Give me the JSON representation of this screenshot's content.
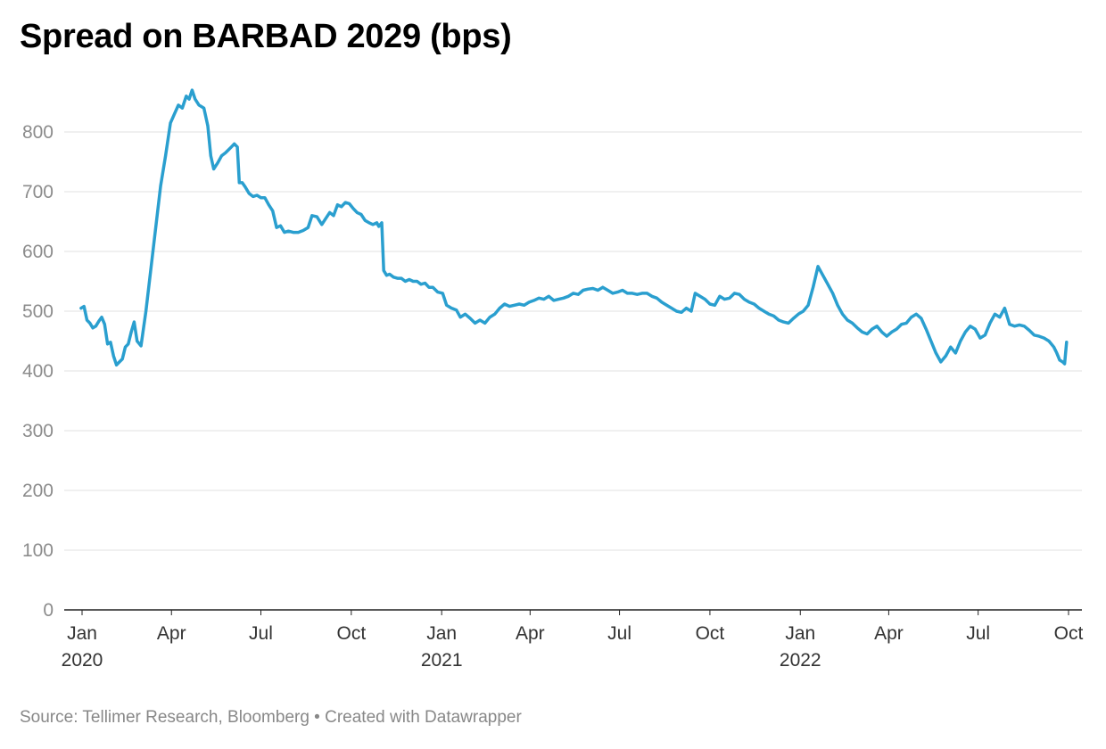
{
  "footer": {
    "source_text": "Source: Tellimer Research, Bloomberg • Created with Datawrapper"
  },
  "colors": {
    "line": "#2a9fcf",
    "grid": "#e0e0e0",
    "axis": "#222222"
  },
  "chart_data": {
    "type": "line",
    "title": "Spread on BARBAD 2029 (bps)",
    "xlabel": "",
    "ylabel": "",
    "xlim": [
      "2020-01-01",
      "2022-10-01"
    ],
    "ylim": [
      0,
      870
    ],
    "grid": true,
    "y_ticks": [
      0,
      100,
      200,
      300,
      400,
      500,
      600,
      700,
      800
    ],
    "x_ticks": [
      {
        "date": "2020-01-01",
        "label": "Jan",
        "year": "2020"
      },
      {
        "date": "2020-04-01",
        "label": "Apr",
        "year": ""
      },
      {
        "date": "2020-07-01",
        "label": "Jul",
        "year": ""
      },
      {
        "date": "2020-10-01",
        "label": "Oct",
        "year": ""
      },
      {
        "date": "2021-01-01",
        "label": "Jan",
        "year": "2021"
      },
      {
        "date": "2021-04-01",
        "label": "Apr",
        "year": ""
      },
      {
        "date": "2021-07-01",
        "label": "Jul",
        "year": ""
      },
      {
        "date": "2021-10-01",
        "label": "Oct",
        "year": ""
      },
      {
        "date": "2022-01-01",
        "label": "Jan",
        "year": "2022"
      },
      {
        "date": "2022-04-01",
        "label": "Apr",
        "year": ""
      },
      {
        "date": "2022-07-01",
        "label": "Jul",
        "year": ""
      },
      {
        "date": "2022-10-01",
        "label": "Oct",
        "year": ""
      }
    ],
    "series": [
      {
        "points": [
          [
            "2019-12-31",
            505
          ],
          [
            "2020-01-03",
            508
          ],
          [
            "2020-01-06",
            485
          ],
          [
            "2020-01-09",
            480
          ],
          [
            "2020-01-12",
            472
          ],
          [
            "2020-01-15",
            475
          ],
          [
            "2020-01-18",
            483
          ],
          [
            "2020-01-21",
            490
          ],
          [
            "2020-01-24",
            478
          ],
          [
            "2020-01-27",
            445
          ],
          [
            "2020-01-30",
            448
          ],
          [
            "2020-02-02",
            425
          ],
          [
            "2020-02-05",
            410
          ],
          [
            "2020-02-08",
            415
          ],
          [
            "2020-02-11",
            420
          ],
          [
            "2020-02-14",
            440
          ],
          [
            "2020-02-17",
            445
          ],
          [
            "2020-02-20",
            465
          ],
          [
            "2020-02-23",
            482
          ],
          [
            "2020-02-26",
            450
          ],
          [
            "2020-03-01",
            442
          ],
          [
            "2020-03-06",
            500
          ],
          [
            "2020-03-11",
            570
          ],
          [
            "2020-03-16",
            640
          ],
          [
            "2020-03-21",
            710
          ],
          [
            "2020-03-26",
            760
          ],
          [
            "2020-03-31",
            815
          ],
          [
            "2020-04-04",
            830
          ],
          [
            "2020-04-08",
            845
          ],
          [
            "2020-04-12",
            840
          ],
          [
            "2020-04-16",
            860
          ],
          [
            "2020-04-19",
            855
          ],
          [
            "2020-04-22",
            870
          ],
          [
            "2020-04-25",
            855
          ],
          [
            "2020-04-29",
            845
          ],
          [
            "2020-05-04",
            840
          ],
          [
            "2020-05-08",
            810
          ],
          [
            "2020-05-11",
            760
          ],
          [
            "2020-05-14",
            738
          ],
          [
            "2020-05-18",
            748
          ],
          [
            "2020-05-22",
            760
          ],
          [
            "2020-05-26",
            765
          ],
          [
            "2020-05-29",
            770
          ],
          [
            "2020-06-01",
            775
          ],
          [
            "2020-06-04",
            780
          ],
          [
            "2020-06-07",
            775
          ],
          [
            "2020-06-09",
            715
          ],
          [
            "2020-06-12",
            715
          ],
          [
            "2020-06-15",
            708
          ],
          [
            "2020-06-19",
            697
          ],
          [
            "2020-06-23",
            692
          ],
          [
            "2020-06-27",
            694
          ],
          [
            "2020-07-01",
            690
          ],
          [
            "2020-07-05",
            690
          ],
          [
            "2020-07-09",
            678
          ],
          [
            "2020-07-13",
            668
          ],
          [
            "2020-07-17",
            640
          ],
          [
            "2020-07-21",
            643
          ],
          [
            "2020-07-25",
            632
          ],
          [
            "2020-07-29",
            634
          ],
          [
            "2020-08-03",
            632
          ],
          [
            "2020-08-08",
            632
          ],
          [
            "2020-08-13",
            635
          ],
          [
            "2020-08-18",
            640
          ],
          [
            "2020-08-22",
            660
          ],
          [
            "2020-08-27",
            658
          ],
          [
            "2020-09-01",
            645
          ],
          [
            "2020-09-05",
            655
          ],
          [
            "2020-09-09",
            665
          ],
          [
            "2020-09-13",
            660
          ],
          [
            "2020-09-17",
            678
          ],
          [
            "2020-09-21",
            675
          ],
          [
            "2020-09-25",
            682
          ],
          [
            "2020-09-29",
            680
          ],
          [
            "2020-10-03",
            672
          ],
          [
            "2020-10-07",
            665
          ],
          [
            "2020-10-11",
            662
          ],
          [
            "2020-10-15",
            652
          ],
          [
            "2020-10-19",
            648
          ],
          [
            "2020-10-23",
            645
          ],
          [
            "2020-10-27",
            648
          ],
          [
            "2020-10-29",
            642
          ],
          [
            "2020-11-01",
            648
          ],
          [
            "2020-11-03",
            568
          ],
          [
            "2020-11-06",
            560
          ],
          [
            "2020-11-09",
            562
          ],
          [
            "2020-11-13",
            557
          ],
          [
            "2020-11-17",
            555
          ],
          [
            "2020-11-21",
            555
          ],
          [
            "2020-11-25",
            550
          ],
          [
            "2020-11-29",
            553
          ],
          [
            "2020-12-03",
            550
          ],
          [
            "2020-12-07",
            550
          ],
          [
            "2020-12-11",
            545
          ],
          [
            "2020-12-15",
            547
          ],
          [
            "2020-12-19",
            540
          ],
          [
            "2020-12-23",
            540
          ],
          [
            "2020-12-28",
            532
          ],
          [
            "2021-01-02",
            530
          ],
          [
            "2021-01-06",
            510
          ],
          [
            "2021-01-11",
            505
          ],
          [
            "2021-01-16",
            502
          ],
          [
            "2021-01-20",
            490
          ],
          [
            "2021-01-25",
            495
          ],
          [
            "2021-01-30",
            488
          ],
          [
            "2021-02-04",
            480
          ],
          [
            "2021-02-09",
            485
          ],
          [
            "2021-02-14",
            480
          ],
          [
            "2021-02-19",
            490
          ],
          [
            "2021-02-24",
            495
          ],
          [
            "2021-03-01",
            505
          ],
          [
            "2021-03-06",
            512
          ],
          [
            "2021-03-11",
            508
          ],
          [
            "2021-03-16",
            510
          ],
          [
            "2021-03-21",
            512
          ],
          [
            "2021-03-26",
            510
          ],
          [
            "2021-03-31",
            515
          ],
          [
            "2021-04-05",
            518
          ],
          [
            "2021-04-10",
            522
          ],
          [
            "2021-04-15",
            520
          ],
          [
            "2021-04-20",
            525
          ],
          [
            "2021-04-25",
            518
          ],
          [
            "2021-04-30",
            520
          ],
          [
            "2021-05-05",
            522
          ],
          [
            "2021-05-10",
            525
          ],
          [
            "2021-05-15",
            530
          ],
          [
            "2021-05-20",
            528
          ],
          [
            "2021-05-25",
            535
          ],
          [
            "2021-05-30",
            537
          ],
          [
            "2021-06-04",
            538
          ],
          [
            "2021-06-09",
            535
          ],
          [
            "2021-06-14",
            540
          ],
          [
            "2021-06-19",
            535
          ],
          [
            "2021-06-24",
            530
          ],
          [
            "2021-06-29",
            532
          ],
          [
            "2021-07-04",
            535
          ],
          [
            "2021-07-09",
            530
          ],
          [
            "2021-07-14",
            530
          ],
          [
            "2021-07-19",
            528
          ],
          [
            "2021-07-24",
            530
          ],
          [
            "2021-07-29",
            530
          ],
          [
            "2021-08-03",
            525
          ],
          [
            "2021-08-08",
            522
          ],
          [
            "2021-08-13",
            515
          ],
          [
            "2021-08-18",
            510
          ],
          [
            "2021-08-23",
            505
          ],
          [
            "2021-08-28",
            500
          ],
          [
            "2021-09-02",
            498
          ],
          [
            "2021-09-07",
            505
          ],
          [
            "2021-09-12",
            500
          ],
          [
            "2021-09-16",
            530
          ],
          [
            "2021-09-21",
            525
          ],
          [
            "2021-09-26",
            520
          ],
          [
            "2021-10-01",
            512
          ],
          [
            "2021-10-06",
            510
          ],
          [
            "2021-10-11",
            525
          ],
          [
            "2021-10-16",
            520
          ],
          [
            "2021-10-21",
            522
          ],
          [
            "2021-10-26",
            530
          ],
          [
            "2021-10-31",
            528
          ],
          [
            "2021-11-05",
            520
          ],
          [
            "2021-11-10",
            515
          ],
          [
            "2021-11-15",
            512
          ],
          [
            "2021-11-20",
            505
          ],
          [
            "2021-11-25",
            500
          ],
          [
            "2021-11-30",
            495
          ],
          [
            "2021-12-05",
            492
          ],
          [
            "2021-12-10",
            485
          ],
          [
            "2021-12-15",
            482
          ],
          [
            "2021-12-20",
            480
          ],
          [
            "2021-12-25",
            488
          ],
          [
            "2021-12-30",
            495
          ],
          [
            "2022-01-04",
            500
          ],
          [
            "2022-01-09",
            510
          ],
          [
            "2022-01-14",
            540
          ],
          [
            "2022-01-19",
            575
          ],
          [
            "2022-01-24",
            560
          ],
          [
            "2022-01-29",
            545
          ],
          [
            "2022-02-03",
            530
          ],
          [
            "2022-02-08",
            510
          ],
          [
            "2022-02-13",
            495
          ],
          [
            "2022-02-18",
            485
          ],
          [
            "2022-02-23",
            480
          ],
          [
            "2022-02-28",
            472
          ],
          [
            "2022-03-05",
            465
          ],
          [
            "2022-03-10",
            462
          ],
          [
            "2022-03-15",
            470
          ],
          [
            "2022-03-20",
            475
          ],
          [
            "2022-03-25",
            465
          ],
          [
            "2022-03-30",
            458
          ],
          [
            "2022-04-04",
            465
          ],
          [
            "2022-04-09",
            470
          ],
          [
            "2022-04-14",
            478
          ],
          [
            "2022-04-19",
            480
          ],
          [
            "2022-04-24",
            490
          ],
          [
            "2022-04-29",
            495
          ],
          [
            "2022-05-04",
            488
          ],
          [
            "2022-05-09",
            470
          ],
          [
            "2022-05-14",
            450
          ],
          [
            "2022-05-19",
            430
          ],
          [
            "2022-05-24",
            415
          ],
          [
            "2022-05-29",
            425
          ],
          [
            "2022-06-03",
            440
          ],
          [
            "2022-06-08",
            430
          ],
          [
            "2022-06-13",
            450
          ],
          [
            "2022-06-18",
            465
          ],
          [
            "2022-06-23",
            475
          ],
          [
            "2022-06-28",
            470
          ],
          [
            "2022-07-03",
            455
          ],
          [
            "2022-07-08",
            460
          ],
          [
            "2022-07-13",
            480
          ],
          [
            "2022-07-18",
            495
          ],
          [
            "2022-07-23",
            490
          ],
          [
            "2022-07-28",
            505
          ],
          [
            "2022-08-02",
            478
          ],
          [
            "2022-08-07",
            475
          ],
          [
            "2022-08-12",
            477
          ],
          [
            "2022-08-17",
            475
          ],
          [
            "2022-08-22",
            468
          ],
          [
            "2022-08-27",
            460
          ],
          [
            "2022-09-01",
            458
          ],
          [
            "2022-09-06",
            455
          ],
          [
            "2022-09-11",
            450
          ],
          [
            "2022-09-16",
            440
          ],
          [
            "2022-09-19",
            430
          ],
          [
            "2022-09-22",
            418
          ],
          [
            "2022-09-25",
            415
          ],
          [
            "2022-09-27",
            412
          ],
          [
            "2022-09-29",
            448
          ]
        ]
      }
    ]
  }
}
